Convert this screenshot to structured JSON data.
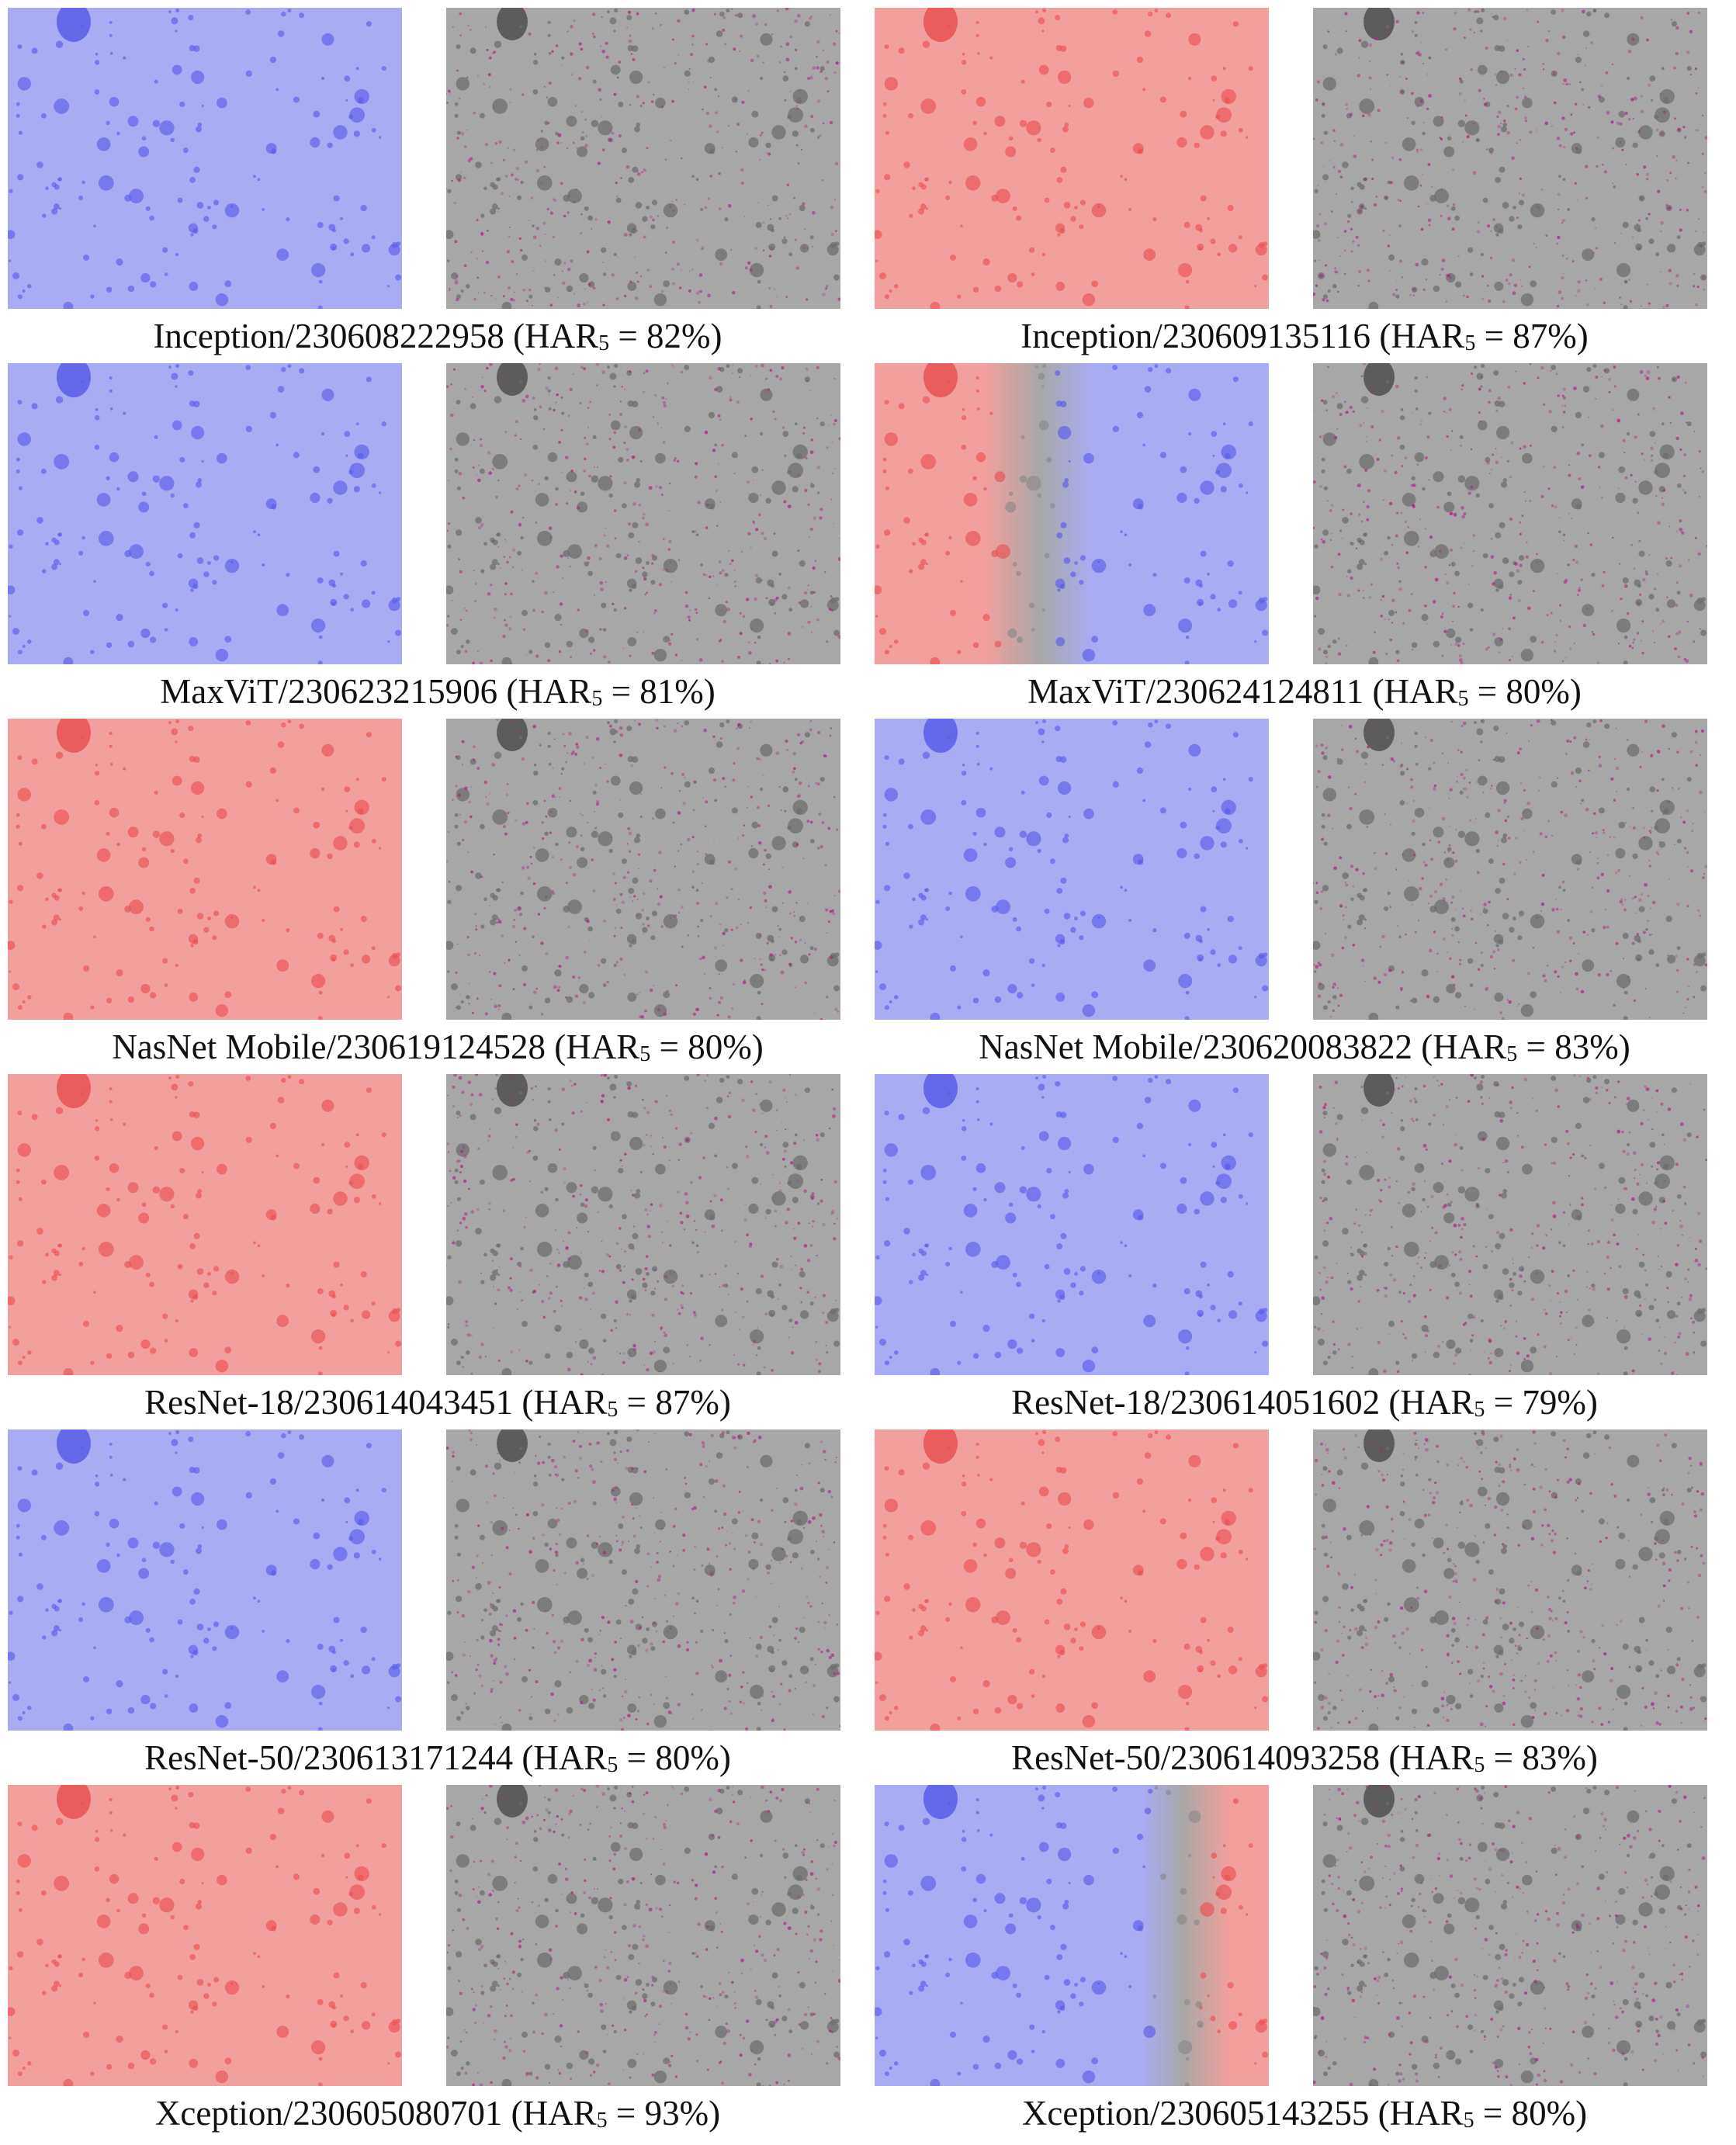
{
  "figures": [
    {
      "model": "Inception",
      "id": "230608222958",
      "har_label": "HAR",
      "har_sub": "5",
      "har_value": "82%",
      "tint": "blue",
      "split": null
    },
    {
      "model": "Inception",
      "id": "230609135116",
      "har_label": "HAR",
      "har_sub": "5",
      "har_value": "87%",
      "tint": "red",
      "split": null
    },
    {
      "model": "MaxViT",
      "id": "230623215906",
      "har_label": "HAR",
      "har_sub": "5",
      "har_value": "81%",
      "tint": "blue",
      "split": null
    },
    {
      "model": "MaxViT",
      "id": "230624124811",
      "har_label": "HAR",
      "har_sub": "5",
      "har_value": "80%",
      "tint": "split",
      "split": "red-left"
    },
    {
      "model": "NasNet Mobile",
      "id": "230619124528",
      "har_label": "HAR",
      "har_sub": "5",
      "har_value": "80%",
      "tint": "red",
      "split": null
    },
    {
      "model": "NasNet Mobile",
      "id": "230620083822",
      "har_label": "HAR",
      "har_sub": "5",
      "har_value": "83%",
      "tint": "blue",
      "split": null
    },
    {
      "model": "ResNet-18",
      "id": "230614043451",
      "har_label": "HAR",
      "har_sub": "5",
      "har_value": "87%",
      "tint": "red",
      "split": null
    },
    {
      "model": "ResNet-18",
      "id": "230614051602",
      "har_label": "HAR",
      "har_sub": "5",
      "har_value": "79%",
      "tint": "blue",
      "split": null
    },
    {
      "model": "ResNet-50",
      "id": "230613171244",
      "har_label": "HAR",
      "har_sub": "5",
      "har_value": "80%",
      "tint": "blue",
      "split": null
    },
    {
      "model": "ResNet-50",
      "id": "230614093258",
      "har_label": "HAR",
      "har_sub": "5",
      "har_value": "83%",
      "tint": "red",
      "split": null
    },
    {
      "model": "Xception",
      "id": "230605080701",
      "har_label": "HAR",
      "har_sub": "5",
      "har_value": "93%",
      "tint": "red",
      "split": null
    },
    {
      "model": "Xception",
      "id": "230605143255",
      "har_label": "HAR",
      "har_sub": "5",
      "har_value": "80%",
      "tint": "split",
      "split": "blue-left"
    }
  ],
  "colors": {
    "blue_tint": "#a9abf3",
    "red_tint": "#f2a09e",
    "gray_base": "#a7a7a7",
    "blue_spot": "#5a5ce8",
    "red_spot": "#e85250",
    "attribution": "#b0208a"
  }
}
